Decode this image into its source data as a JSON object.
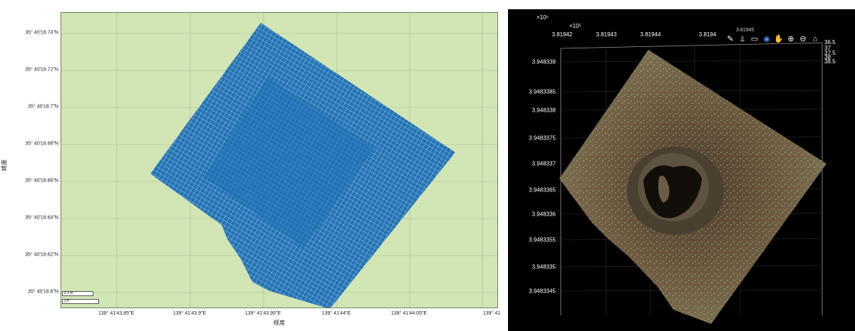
{
  "geo_plot": {
    "latitude_ticks": [
      "35° 40'18.74\"N",
      "35° 40'18.72\"N",
      "35° 40'18.7\"N",
      "35° 40'18.68\"N",
      "35° 40'18.66\"N",
      "35° 40'18.64\"N",
      "35° 40'18.62\"N",
      "35° 40'18.6\"N"
    ],
    "longitude_ticks": [
      "139° 41'43.85\"E",
      "139° 41'43.9\"E",
      "139° 41'43.95\"E",
      "139° 41'44\"E",
      "139° 41'44.05\"E",
      "139° 41"
    ],
    "ylabel": "緯度",
    "xlabel": "経度",
    "scalebar_metric": "0.3 m",
    "scalebar_imperial": "2 ft",
    "colors": {
      "background": "#d2e6b5",
      "points": "#1f6fb5"
    }
  },
  "pc_viewer": {
    "y_exponent": "×10⁶",
    "x_exponent": "×10⁵",
    "x_ticks": [
      "3.81942",
      "3.81943",
      "3.81944",
      "3.8194"
    ],
    "x_overlap_label": "3.81945",
    "y_ticks": [
      "3.948339",
      "3.9483385",
      "3.948338",
      "3.9483375",
      "3.948337",
      "3.9483365",
      "3.948336",
      "3.9483355",
      "3.948335",
      "3.9483345"
    ],
    "z_ticks": [
      "36.5",
      "37",
      "37.5",
      "38",
      "38.5"
    ],
    "toolbar": [
      {
        "name": "brush-icon",
        "glyph": "✎"
      },
      {
        "name": "data-tips-icon",
        "glyph": "⫫"
      },
      {
        "name": "restore-view-icon",
        "glyph": "▭"
      },
      {
        "name": "rotate-3d-icon",
        "glyph": "◉"
      },
      {
        "name": "pan-icon",
        "glyph": "✋"
      },
      {
        "name": "zoom-in-icon",
        "glyph": "⊕"
      },
      {
        "name": "zoom-out-icon",
        "glyph": "⊖"
      },
      {
        "name": "home-icon",
        "glyph": "⌂"
      }
    ],
    "colors": {
      "background": "#000000",
      "ground": "#6d5a42",
      "hole": "#120e0a"
    }
  }
}
